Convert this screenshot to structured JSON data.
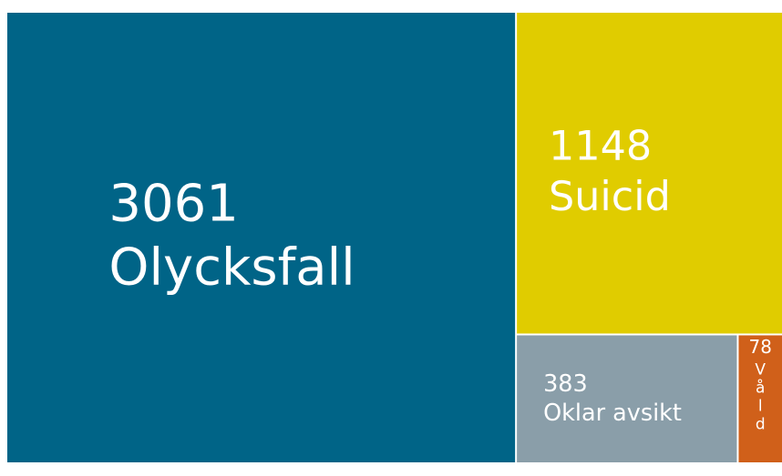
{
  "chart_data": {
    "type": "treemap",
    "categories": [
      "Olycksfall",
      "Suicid",
      "Oklar avsikt",
      "Våld"
    ],
    "values": [
      3061,
      1148,
      383,
      78
    ],
    "colors": [
      "#006487",
      "#e0cc00",
      "#8a9ea9",
      "#d0601a"
    ]
  }
}
